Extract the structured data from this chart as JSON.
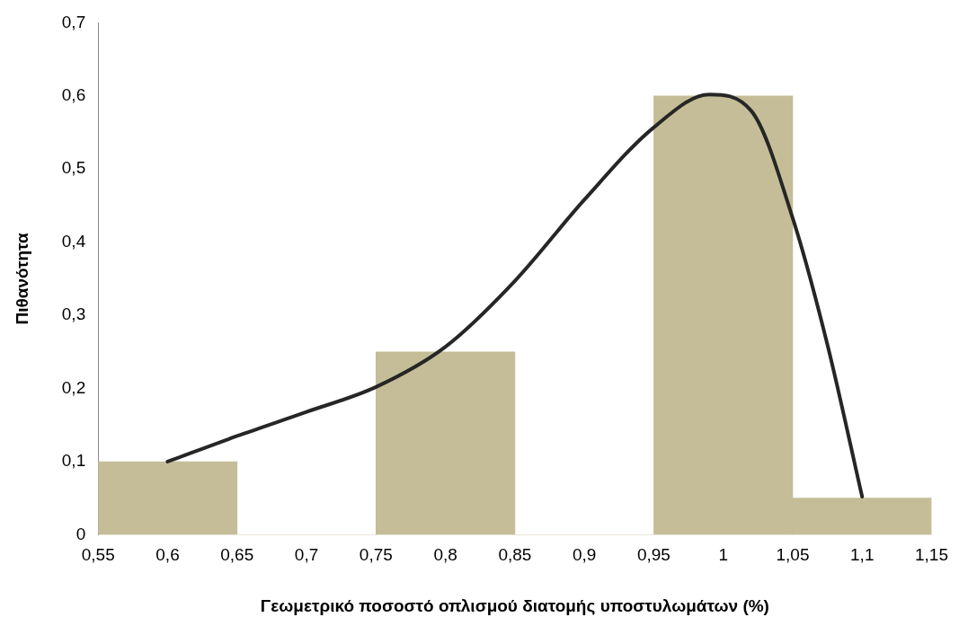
{
  "chart_data": {
    "type": "histogram",
    "xlabel": "Γεωμετρικό ποσοστό οπλισμού διατομής υποστυλωμάτων (%)",
    "ylabel": "Πιθανότητα",
    "bins": [
      0.55,
      0.65,
      0.75,
      0.85,
      0.95,
      1.05,
      1.15
    ],
    "values": [
      0.1,
      0,
      0.25,
      0,
      0.6,
      0.05
    ],
    "color": "#c4bd97",
    "series": [
      {
        "type": "line",
        "color": "#262626",
        "x": [
          0.6,
          0.65,
          0.7,
          0.75,
          0.8,
          0.85,
          0.9,
          0.95,
          0.99,
          1.02,
          1.05,
          1.075,
          1.1
        ],
        "values": [
          0.1,
          0.135,
          0.168,
          0.202,
          0.257,
          0.347,
          0.458,
          0.557,
          0.602,
          0.58,
          0.433,
          0.26,
          0.052
        ]
      }
    ],
    "marker": "none",
    "line_style": "solid",
    "grid": false,
    "legend": false,
    "xlim": [
      0.55,
      1.15
    ],
    "xticks": [
      {
        "value": 0.55,
        "label": "0,55"
      },
      {
        "value": 0.6,
        "label": "0,6"
      },
      {
        "value": 0.65,
        "label": "0,65"
      },
      {
        "value": 0.7,
        "label": "0,7"
      },
      {
        "value": 0.75,
        "label": "0,75"
      },
      {
        "value": 0.8,
        "label": "0,8"
      },
      {
        "value": 0.85,
        "label": "0,85"
      },
      {
        "value": 0.9,
        "label": "0,9"
      },
      {
        "value": 0.95,
        "label": "0,95"
      },
      {
        "value": 1,
        "label": "1"
      },
      {
        "value": 1.05,
        "label": "1,05"
      },
      {
        "value": 1.1,
        "label": "1,1"
      },
      {
        "value": 1.15,
        "label": "1,15"
      }
    ],
    "ylim": [
      0,
      0.7
    ],
    "yticks": [
      0,
      {
        "value": 0.1,
        "label": "0,1"
      },
      {
        "value": 0.2,
        "label": "0,2"
      },
      {
        "value": 0.3,
        "label": "0,3"
      },
      {
        "value": 0.4,
        "label": "0,4"
      },
      {
        "value": 0.5,
        "label": "0,5"
      },
      {
        "value": 0.6,
        "label": "0,6"
      },
      {
        "value": 0.7,
        "label": "0,7"
      }
    ]
  }
}
